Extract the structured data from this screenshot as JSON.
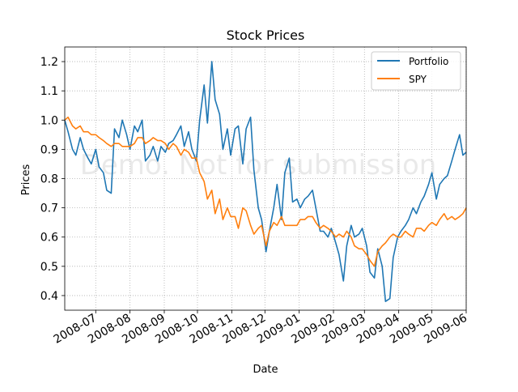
{
  "chart_data": {
    "type": "line",
    "title": "Stock Prices",
    "xlabel": "Date",
    "ylabel": "Prices",
    "watermark": "Demo. Not for submission",
    "xlim": [
      "2008-06-03",
      "2009-06-01"
    ],
    "ylim": [
      0.35,
      1.25
    ],
    "yticks": [
      0.4,
      0.5,
      0.6,
      0.7,
      0.8,
      0.9,
      1.0,
      1.1,
      1.2
    ],
    "ytick_labels": [
      "0.4",
      "0.5",
      "0.6",
      "0.7",
      "0.8",
      "0.9",
      "1.0",
      "1.1",
      "1.2"
    ],
    "xticks": [
      "2008-07-01",
      "2008-08-01",
      "2008-09-01",
      "2008-10-01",
      "2008-11-01",
      "2008-12-01",
      "2009-01-01",
      "2009-02-01",
      "2009-03-01",
      "2009-04-01",
      "2009-05-01",
      "2009-06-01"
    ],
    "xtick_labels": [
      "2008-07",
      "2008-08",
      "2008-09",
      "2008-10",
      "2008-11",
      "2008-12",
      "2009-01",
      "2009-02",
      "2009-03",
      "2009-04",
      "2009-05",
      "2009-06"
    ],
    "grid": true,
    "legend_position": "top-right",
    "series": [
      {
        "name": "Portfolio",
        "color": "#1f77b4",
        "x": [
          "2008-06-03",
          "2008-06-06",
          "2008-06-10",
          "2008-06-13",
          "2008-06-17",
          "2008-06-20",
          "2008-06-24",
          "2008-06-27",
          "2008-07-01",
          "2008-07-04",
          "2008-07-08",
          "2008-07-11",
          "2008-07-15",
          "2008-07-18",
          "2008-07-22",
          "2008-07-25",
          "2008-07-29",
          "2008-08-01",
          "2008-08-05",
          "2008-08-08",
          "2008-08-12",
          "2008-08-15",
          "2008-08-19",
          "2008-08-22",
          "2008-08-26",
          "2008-08-29",
          "2008-09-02",
          "2008-09-05",
          "2008-09-09",
          "2008-09-12",
          "2008-09-16",
          "2008-09-19",
          "2008-09-23",
          "2008-09-26",
          "2008-09-30",
          "2008-10-03",
          "2008-10-07",
          "2008-10-10",
          "2008-10-14",
          "2008-10-17",
          "2008-10-21",
          "2008-10-24",
          "2008-10-28",
          "2008-10-31",
          "2008-11-04",
          "2008-11-07",
          "2008-11-11",
          "2008-11-14",
          "2008-11-18",
          "2008-11-21",
          "2008-11-25",
          "2008-11-28",
          "2008-12-02",
          "2008-12-05",
          "2008-12-09",
          "2008-12-12",
          "2008-12-16",
          "2008-12-19",
          "2008-12-23",
          "2008-12-26",
          "2008-12-30",
          "2009-01-02",
          "2009-01-06",
          "2009-01-09",
          "2009-01-13",
          "2009-01-16",
          "2009-01-20",
          "2009-01-23",
          "2009-01-27",
          "2009-01-30",
          "2009-02-03",
          "2009-02-06",
          "2009-02-10",
          "2009-02-13",
          "2009-02-17",
          "2009-02-20",
          "2009-02-24",
          "2009-02-27",
          "2009-03-03",
          "2009-03-06",
          "2009-03-10",
          "2009-03-13",
          "2009-03-17",
          "2009-03-20",
          "2009-03-24",
          "2009-03-27",
          "2009-03-31",
          "2009-04-03",
          "2009-04-07",
          "2009-04-10",
          "2009-04-14",
          "2009-04-17",
          "2009-04-21",
          "2009-04-24",
          "2009-04-28",
          "2009-05-01",
          "2009-05-05",
          "2009-05-08",
          "2009-05-12",
          "2009-05-15",
          "2009-05-19",
          "2009-05-22",
          "2009-05-26",
          "2009-05-29",
          "2009-06-01"
        ],
        "values": [
          1.0,
          0.96,
          0.9,
          0.88,
          0.94,
          0.9,
          0.87,
          0.85,
          0.9,
          0.84,
          0.82,
          0.76,
          0.75,
          0.97,
          0.94,
          1.0,
          0.95,
          0.9,
          0.98,
          0.96,
          1.0,
          0.86,
          0.88,
          0.91,
          0.86,
          0.91,
          0.89,
          0.92,
          0.93,
          0.95,
          0.98,
          0.91,
          0.96,
          0.9,
          0.86,
          1.0,
          1.12,
          0.99,
          1.2,
          1.07,
          1.02,
          0.9,
          0.97,
          0.88,
          0.97,
          0.98,
          0.85,
          0.97,
          1.01,
          0.83,
          0.7,
          0.66,
          0.55,
          0.62,
          0.7,
          0.78,
          0.66,
          0.82,
          0.87,
          0.72,
          0.73,
          0.7,
          0.73,
          0.74,
          0.76,
          0.7,
          0.62,
          0.62,
          0.6,
          0.63,
          0.58,
          0.54,
          0.45,
          0.57,
          0.64,
          0.6,
          0.61,
          0.63,
          0.57,
          0.48,
          0.46,
          0.56,
          0.5,
          0.38,
          0.39,
          0.53,
          0.6,
          0.62,
          0.64,
          0.66,
          0.7,
          0.68,
          0.72,
          0.74,
          0.78,
          0.82,
          0.73,
          0.78,
          0.8,
          0.81,
          0.86,
          0.9,
          0.95,
          0.88,
          0.89
        ]
      },
      {
        "name": "SPY",
        "color": "#ff7f0e",
        "x": [
          "2008-06-03",
          "2008-06-06",
          "2008-06-10",
          "2008-06-13",
          "2008-06-17",
          "2008-06-20",
          "2008-06-24",
          "2008-06-27",
          "2008-07-01",
          "2008-07-04",
          "2008-07-08",
          "2008-07-11",
          "2008-07-15",
          "2008-07-18",
          "2008-07-22",
          "2008-07-25",
          "2008-07-29",
          "2008-08-01",
          "2008-08-05",
          "2008-08-08",
          "2008-08-12",
          "2008-08-15",
          "2008-08-19",
          "2008-08-22",
          "2008-08-26",
          "2008-08-29",
          "2008-09-02",
          "2008-09-05",
          "2008-09-09",
          "2008-09-12",
          "2008-09-16",
          "2008-09-19",
          "2008-09-23",
          "2008-09-26",
          "2008-09-30",
          "2008-10-03",
          "2008-10-07",
          "2008-10-10",
          "2008-10-14",
          "2008-10-17",
          "2008-10-21",
          "2008-10-24",
          "2008-10-28",
          "2008-10-31",
          "2008-11-04",
          "2008-11-07",
          "2008-11-11",
          "2008-11-14",
          "2008-11-18",
          "2008-11-21",
          "2008-11-25",
          "2008-11-28",
          "2008-12-02",
          "2008-12-05",
          "2008-12-09",
          "2008-12-12",
          "2008-12-16",
          "2008-12-19",
          "2008-12-23",
          "2008-12-26",
          "2008-12-30",
          "2009-01-02",
          "2009-01-06",
          "2009-01-09",
          "2009-01-13",
          "2009-01-16",
          "2009-01-20",
          "2009-01-23",
          "2009-01-27",
          "2009-01-30",
          "2009-02-03",
          "2009-02-06",
          "2009-02-10",
          "2009-02-13",
          "2009-02-17",
          "2009-02-20",
          "2009-02-24",
          "2009-02-27",
          "2009-03-03",
          "2009-03-06",
          "2009-03-10",
          "2009-03-13",
          "2009-03-17",
          "2009-03-20",
          "2009-03-24",
          "2009-03-27",
          "2009-03-31",
          "2009-04-03",
          "2009-04-07",
          "2009-04-10",
          "2009-04-14",
          "2009-04-17",
          "2009-04-21",
          "2009-04-24",
          "2009-04-28",
          "2009-05-01",
          "2009-05-05",
          "2009-05-08",
          "2009-05-12",
          "2009-05-15",
          "2009-05-19",
          "2009-05-22",
          "2009-05-26",
          "2009-05-29",
          "2009-06-01"
        ],
        "values": [
          1.0,
          1.01,
          0.98,
          0.97,
          0.98,
          0.96,
          0.96,
          0.95,
          0.95,
          0.94,
          0.93,
          0.92,
          0.91,
          0.92,
          0.92,
          0.91,
          0.91,
          0.91,
          0.92,
          0.94,
          0.94,
          0.92,
          0.93,
          0.94,
          0.93,
          0.93,
          0.92,
          0.9,
          0.92,
          0.91,
          0.88,
          0.9,
          0.89,
          0.87,
          0.87,
          0.82,
          0.79,
          0.73,
          0.76,
          0.68,
          0.73,
          0.66,
          0.7,
          0.67,
          0.67,
          0.63,
          0.7,
          0.69,
          0.64,
          0.61,
          0.63,
          0.64,
          0.57,
          0.62,
          0.65,
          0.64,
          0.67,
          0.64,
          0.64,
          0.64,
          0.64,
          0.66,
          0.66,
          0.67,
          0.67,
          0.65,
          0.63,
          0.64,
          0.63,
          0.62,
          0.6,
          0.61,
          0.6,
          0.62,
          0.6,
          0.57,
          0.56,
          0.56,
          0.54,
          0.52,
          0.5,
          0.55,
          0.57,
          0.58,
          0.6,
          0.61,
          0.6,
          0.6,
          0.62,
          0.61,
          0.6,
          0.63,
          0.63,
          0.62,
          0.64,
          0.65,
          0.64,
          0.66,
          0.68,
          0.66,
          0.67,
          0.66,
          0.67,
          0.68,
          0.7
        ]
      }
    ]
  }
}
